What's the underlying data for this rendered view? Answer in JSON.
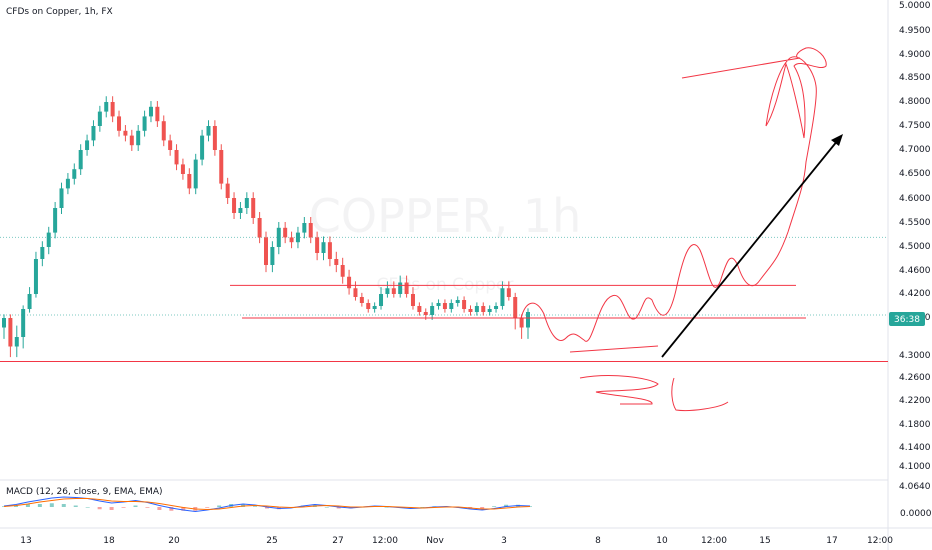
{
  "title": "CFDs on Copper, 1h, FX",
  "watermark": {
    "main": "COPPER, 1h",
    "sub": "CFDs on Copper"
  },
  "price_badge": "36:38",
  "colors": {
    "up": "#26a69a",
    "down": "#ef5350",
    "drawing": "#f23645",
    "arrow": "#000000",
    "macd": "#2962ff",
    "signal": "#ff6d00",
    "badge": "#26a69a"
  },
  "chart_data": {
    "type": "candlestick",
    "y_axis_labels": [
      "5.0000",
      "4.9500",
      "4.9000",
      "4.8500",
      "4.8000",
      "4.7500",
      "4.7000",
      "4.6500",
      "4.6000",
      "4.5500",
      "4.5000",
      "4.4600",
      "4.4200",
      "4.3400",
      "4.3000",
      "4.2600",
      "4.2200",
      "4.1800",
      "4.1400",
      "4.1000",
      "4.0640"
    ],
    "x_axis_labels": [
      "13",
      "18",
      "20",
      "25",
      "27",
      "12:00",
      "Nov",
      "3",
      "8",
      "10",
      "12:00",
      "15",
      "17",
      "12:00"
    ],
    "ylim": [
      4.06,
      5.0
    ],
    "horizontal_levels": [
      4.435,
      4.34,
      4.29
    ],
    "dotted_levels": [
      4.52,
      4.35
    ],
    "candles_close": [
      4.34,
      4.31,
      4.32,
      4.37,
      4.42,
      4.48,
      4.5,
      4.53,
      4.58,
      4.62,
      4.64,
      4.66,
      4.7,
      4.72,
      4.75,
      4.78,
      4.8,
      4.77,
      4.74,
      4.73,
      4.71,
      4.74,
      4.77,
      4.79,
      4.76,
      4.72,
      4.7,
      4.67,
      4.65,
      4.62,
      4.68,
      4.73,
      4.75,
      4.7,
      4.63,
      4.6,
      4.57,
      4.58,
      4.6,
      4.56,
      4.52,
      4.47,
      4.5,
      4.54,
      4.52,
      4.51,
      4.53,
      4.55,
      4.52,
      4.49,
      4.51,
      4.48,
      4.47,
      4.45,
      4.43,
      4.41,
      4.39,
      4.37,
      4.38,
      4.42,
      4.43,
      4.42,
      4.44,
      4.42,
      4.38,
      4.36,
      4.35,
      4.38,
      4.39,
      4.37,
      4.39,
      4.4,
      4.37,
      4.36,
      4.38,
      4.36,
      4.37,
      4.38,
      4.43,
      4.41,
      4.34,
      4.33,
      4.36
    ],
    "macd": {
      "label": "MACD (12, 26, close, 9, EMA, EMA)",
      "y_axis_label": "0.0000",
      "macd_line": [
        0.2,
        0.5,
        1.0,
        1.4,
        1.8,
        2.0,
        1.9,
        1.7,
        1.2,
        0.8,
        1.0,
        1.3,
        0.9,
        0.3,
        -0.2,
        -0.6,
        -0.9,
        -0.6,
        -0.2,
        0.3,
        0.6,
        0.4,
        0.0,
        -0.3,
        -0.2,
        0.2,
        0.5,
        0.3,
        0.0,
        -0.2,
        0.0,
        0.2,
        0.1,
        -0.1,
        -0.3,
        -0.2,
        0.0,
        0.1,
        -0.1,
        -0.4,
        -0.6,
        -0.3,
        0.1,
        0.3,
        0.2
      ],
      "signal_line": [
        0.1,
        0.3,
        0.6,
        1.0,
        1.3,
        1.6,
        1.7,
        1.7,
        1.5,
        1.2,
        1.1,
        1.1,
        1.0,
        0.7,
        0.3,
        -0.1,
        -0.4,
        -0.5,
        -0.4,
        -0.1,
        0.2,
        0.3,
        0.2,
        0.0,
        -0.1,
        0.0,
        0.2,
        0.3,
        0.2,
        0.0,
        0.0,
        0.1,
        0.1,
        0.0,
        -0.1,
        -0.2,
        -0.1,
        0.0,
        0.0,
        -0.2,
        -0.4,
        -0.4,
        -0.2,
        0.0,
        0.1
      ]
    }
  }
}
